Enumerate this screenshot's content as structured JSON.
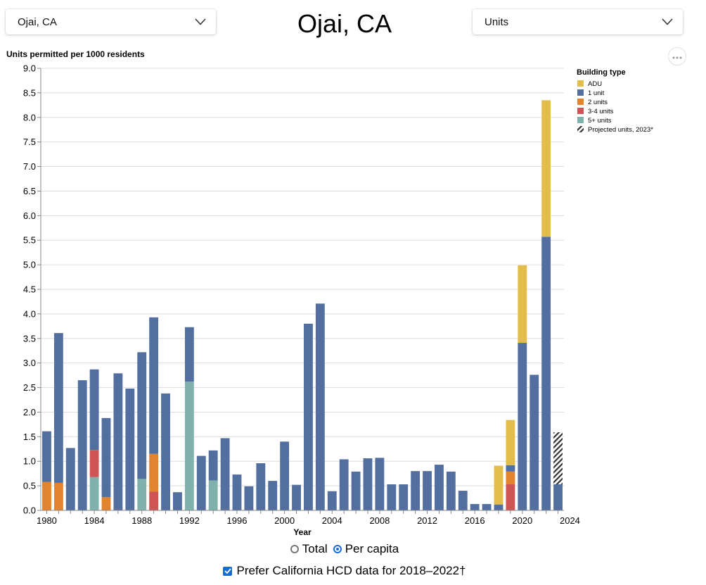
{
  "header": {
    "title": "Ojai, CA",
    "place_select": {
      "value": "Ojai, CA"
    },
    "unit_select": {
      "value": "Units"
    }
  },
  "controls": {
    "radio_total": "Total",
    "radio_per_capita": "Per capita",
    "selected": "Per capita",
    "checkbox_label": "Prefer California HCD data for 2018–2022†",
    "checkbox_checked": true
  },
  "chart_data": {
    "type": "bar",
    "stacked": true,
    "title": "",
    "ylabel": "Units permitted per 1000 residents",
    "xlabel": "Year",
    "ylim": [
      0,
      9
    ],
    "yticks": [
      "0.0",
      "0.5",
      "1.0",
      "1.5",
      "2.0",
      "2.5",
      "3.0",
      "3.5",
      "4.0",
      "4.5",
      "5.0",
      "5.5",
      "6.0",
      "6.5",
      "7.0",
      "7.5",
      "8.0",
      "8.5",
      "9.0"
    ],
    "xticks": [
      "1980",
      "1984",
      "1988",
      "1992",
      "1996",
      "2000",
      "2004",
      "2008",
      "2012",
      "2016",
      "2020",
      "2024"
    ],
    "grid": true,
    "legend_position": "right",
    "legend_title": "Building type",
    "categories": [
      1980,
      1981,
      1982,
      1983,
      1984,
      1985,
      1986,
      1987,
      1988,
      1989,
      1990,
      1991,
      1992,
      1993,
      1994,
      1995,
      1996,
      1997,
      1998,
      1999,
      2000,
      2001,
      2002,
      2003,
      2004,
      2005,
      2006,
      2007,
      2008,
      2009,
      2010,
      2011,
      2012,
      2013,
      2014,
      2015,
      2016,
      2017,
      2018,
      2019,
      2020,
      2021,
      2022,
      2023
    ],
    "series": [
      {
        "name": "5+ units",
        "color": "#7fb2ac",
        "values": [
          0,
          0,
          0,
          0,
          0.68,
          0,
          0,
          0,
          0.64,
          0,
          0,
          0,
          2.62,
          0,
          0.61,
          0,
          0,
          0,
          0,
          0,
          0,
          0,
          0,
          0,
          0,
          0,
          0,
          0,
          0,
          0,
          0,
          0,
          0,
          0,
          0,
          0,
          0,
          0,
          0,
          0,
          0,
          0,
          0,
          0
        ]
      },
      {
        "name": "3-4 units",
        "color": "#cf5455",
        "values": [
          0,
          0,
          0,
          0,
          0.55,
          0,
          0,
          0,
          0,
          0.38,
          0,
          0,
          0,
          0,
          0,
          0,
          0,
          0,
          0,
          0,
          0,
          0,
          0,
          0,
          0,
          0,
          0,
          0,
          0,
          0,
          0,
          0,
          0,
          0,
          0,
          0,
          0,
          0,
          0,
          0.53,
          0,
          0,
          0,
          0
        ]
      },
      {
        "name": "2 units",
        "color": "#e1832f",
        "values": [
          0.58,
          0.56,
          0,
          0,
          0,
          0.27,
          0,
          0,
          0,
          0.77,
          0,
          0,
          0,
          0,
          0,
          0,
          0,
          0,
          0,
          0,
          0,
          0,
          0,
          0,
          0,
          0,
          0,
          0,
          0,
          0,
          0,
          0,
          0,
          0,
          0,
          0,
          0,
          0,
          0,
          0.26,
          0,
          0,
          0,
          0
        ]
      },
      {
        "name": "1 unit",
        "color": "#526fa0",
        "values": [
          1.03,
          3.05,
          1.27,
          2.65,
          1.64,
          1.61,
          2.79,
          2.48,
          2.58,
          2.78,
          2.38,
          0.37,
          1.11,
          1.11,
          0.61,
          1.47,
          0.73,
          0.49,
          0.96,
          0.6,
          1.4,
          0.52,
          3.8,
          4.21,
          0.39,
          1.04,
          0.79,
          1.06,
          1.07,
          0.53,
          0.53,
          0.8,
          0.8,
          0.93,
          0.79,
          0.4,
          0.13,
          0.13,
          0.12,
          0.13,
          3.41,
          2.76,
          5.57,
          0.53
        ]
      },
      {
        "name": "ADU",
        "color": "#e2bd4c",
        "values": [
          0,
          0,
          0,
          0,
          0,
          0,
          0,
          0,
          0,
          0,
          0,
          0,
          0,
          0,
          0,
          0,
          0,
          0,
          0,
          0,
          0,
          0,
          0,
          0,
          0,
          0,
          0,
          0,
          0,
          0,
          0,
          0,
          0,
          0,
          0,
          0,
          0,
          0,
          0.79,
          0.92,
          1.58,
          0,
          2.78,
          0
        ]
      }
    ],
    "projected": {
      "name": "Projected units, 2023*",
      "category": 2023,
      "value": 1.06
    },
    "legend_items": [
      {
        "name": "ADU",
        "color": "#e2bd4c"
      },
      {
        "name": "1 unit",
        "color": "#526fa0"
      },
      {
        "name": "2 units",
        "color": "#e1832f"
      },
      {
        "name": "3-4 units",
        "color": "#cf5455"
      },
      {
        "name": "5+ units",
        "color": "#7fb2ac"
      },
      {
        "name": "Projected units, 2023*",
        "pattern": "hatch"
      }
    ]
  }
}
